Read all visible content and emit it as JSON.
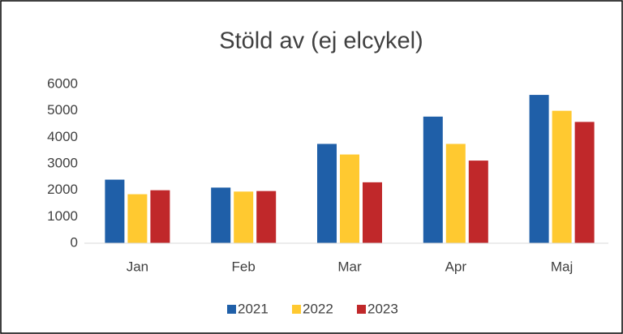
{
  "chart_data": {
    "type": "bar",
    "title": "Stöld av (ej elcykel)",
    "categories": [
      "Jan",
      "Feb",
      "Mar",
      "Apr",
      "Maj"
    ],
    "series": [
      {
        "name": "2021",
        "color": "#1f5fa8",
        "values": [
          2400,
          2100,
          3750,
          4780,
          5600
        ]
      },
      {
        "name": "2022",
        "color": "#ffc930",
        "values": [
          1850,
          1950,
          3350,
          3750,
          5000
        ]
      },
      {
        "name": "2023",
        "color": "#c0282a",
        "values": [
          2000,
          1970,
          2300,
          3120,
          4580
        ]
      }
    ],
    "ylim": [
      0,
      6000
    ],
    "yticks": [
      0,
      1000,
      2000,
      3000,
      4000,
      5000,
      6000
    ],
    "grid": false,
    "legend": "bottom"
  }
}
